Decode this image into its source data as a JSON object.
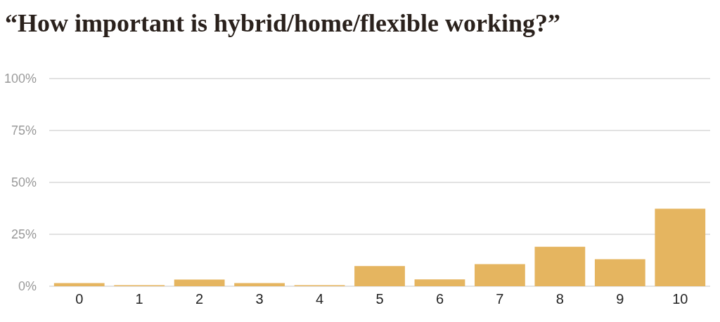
{
  "chart_data": {
    "type": "bar",
    "title": "“How important is hybrid/home/flexible working?”",
    "categories": [
      "0",
      "1",
      "2",
      "3",
      "4",
      "5",
      "6",
      "7",
      "8",
      "9",
      "10"
    ],
    "values": [
      1.5,
      0.5,
      3.2,
      1.5,
      0.5,
      9.7,
      3.3,
      10.6,
      19,
      13,
      37.3
    ],
    "color": "#e5b560",
    "ylim": [
      0,
      100
    ],
    "yticks": [
      {
        "value": 0,
        "label": "0%"
      },
      {
        "value": 25,
        "label": "25%"
      },
      {
        "value": 50,
        "label": "50%"
      },
      {
        "value": 75,
        "label": "75%"
      },
      {
        "value": 100,
        "label": "100%"
      }
    ],
    "grid": "y"
  }
}
